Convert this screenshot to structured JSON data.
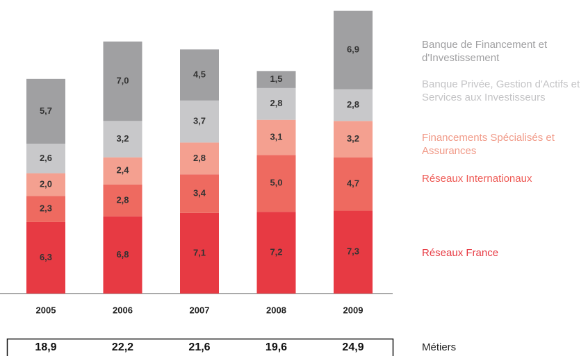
{
  "chart_data": {
    "type": "stacked_bar",
    "categories": [
      "2005",
      "2006",
      "2007",
      "2008",
      "2009"
    ],
    "series": [
      {
        "name": "Réseaux France",
        "color": "#e73a43",
        "values": [
          6.3,
          6.8,
          7.1,
          7.2,
          7.3
        ],
        "value_labels": [
          "6,3",
          "6,8",
          "7,1",
          "7,2",
          "7,3"
        ]
      },
      {
        "name": "Réseaux Internationaux",
        "color": "#ee6a60",
        "values": [
          2.3,
          2.8,
          3.4,
          5.0,
          4.7
        ],
        "value_labels": [
          "2,3",
          "2,8",
          "3,4",
          "5,0",
          "4,7"
        ]
      },
      {
        "name": "Financements Spécialisés et Assurances",
        "color": "#f4a090",
        "values": [
          2.0,
          2.4,
          2.8,
          3.1,
          3.2
        ],
        "value_labels": [
          "2,0",
          "2,4",
          "2,8",
          "3,1",
          "3,2"
        ]
      },
      {
        "name": "Banque Privée, Gestion d'Actifs et Services aux Investisseurs",
        "color": "#c8c8ca",
        "values": [
          2.6,
          3.2,
          3.7,
          2.8,
          2.8
        ],
        "value_labels": [
          "2,6",
          "3,2",
          "3,7",
          "2,8",
          "2,8"
        ]
      },
      {
        "name": "Banque de Financement et d'Investissement",
        "color": "#a0a0a2",
        "values": [
          5.7,
          7.0,
          4.5,
          1.5,
          6.9
        ],
        "value_labels": [
          "5,7",
          "7,0",
          "4,5",
          "1,5",
          "6,9"
        ]
      }
    ],
    "totals": {
      "label": "Métiers",
      "values": [
        18.9,
        22.2,
        21.6,
        19.6,
        24.9
      ],
      "value_labels": [
        "18,9",
        "22,2",
        "21,6",
        "19,6",
        "24,9"
      ]
    },
    "ylim": [
      0,
      25
    ]
  }
}
